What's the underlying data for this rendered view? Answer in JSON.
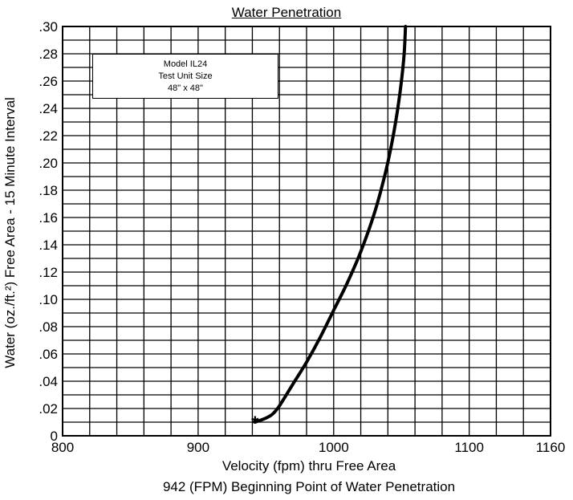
{
  "chart_data": {
    "type": "line",
    "title": "Water Penetration",
    "xlabel": "Velocity (fpm) thru Free Area",
    "ylabel": "Water (oz./ft.²) Free Area - 15 Minute Interval",
    "caption": "942 (FPM) Beginning Point of Water Penetration",
    "xlim": [
      800,
      1160
    ],
    "ylim": [
      0,
      0.3
    ],
    "x_ticks": [
      800,
      900,
      1000,
      1100,
      1160
    ],
    "x_tick_labels": [
      "800",
      "900",
      "1000",
      "1100",
      "1160"
    ],
    "y_ticks": [
      0,
      0.02,
      0.04,
      0.06,
      0.08,
      0.1,
      0.12,
      0.14,
      0.16,
      0.18,
      0.2,
      0.22,
      0.24,
      0.26,
      0.28,
      0.3
    ],
    "y_tick_labels": [
      "0",
      ".02",
      ".04",
      ".06",
      ".08",
      ".10",
      ".12",
      ".14",
      ".16",
      ".18",
      ".20",
      ".22",
      ".24",
      ".26",
      ".28",
      ".30"
    ],
    "grid": true,
    "legend_box": {
      "lines": [
        "Model IL24",
        "Test Unit Size",
        "48\" x 48\""
      ],
      "placement": "top-left"
    },
    "start_marker": {
      "x": 942,
      "y": 0.01,
      "symbol": "*"
    },
    "series": [
      {
        "x": [
          942,
          950,
          955,
          960,
          970,
          980,
          990,
          1000,
          1010,
          1020,
          1030,
          1038,
          1043,
          1047,
          1050,
          1052,
          1053
        ],
        "y": [
          0.01,
          0.013,
          0.016,
          0.022,
          0.038,
          0.054,
          0.072,
          0.092,
          0.112,
          0.135,
          0.163,
          0.192,
          0.215,
          0.238,
          0.26,
          0.28,
          0.3
        ]
      }
    ]
  }
}
